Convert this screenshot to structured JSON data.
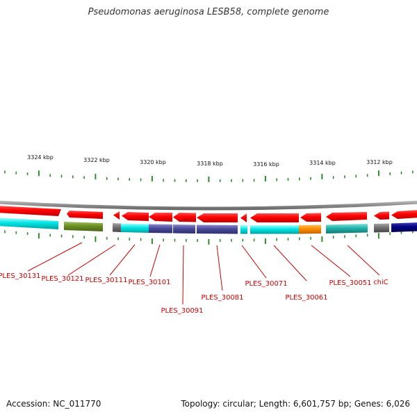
{
  "header": {
    "title": "Pseudomonas aeruginosa LESB58, complete genome"
  },
  "footer": {
    "accession": "Accession: NC_011770",
    "summary": "Topology: circular; Length: 6,601,757 bp; Genes: 6,026"
  },
  "scale": {
    "ticks": [
      "3324 kbp",
      "3322 kbp",
      "3320 kbp",
      "3318 kbp",
      "3316 kbp",
      "3314 kbp",
      "3312 kbp"
    ]
  },
  "gene_labels": [
    "PLES_30131",
    "PLES_30121",
    "PLES_30111",
    "PLES_30101",
    "PLES_30091",
    "PLES_30081",
    "PLES_30071",
    "PLES_30061",
    "PLES_30051",
    "chiC"
  ],
  "colors": {
    "forward_strand": "#ff0000",
    "cog_cyan": "#00e5e5",
    "cog_olive": "#6b8e23",
    "cog_slate": "#4b4b9b",
    "cog_orange": "#ff8c00",
    "cog_teal": "#20b2aa",
    "cog_grey": "#707070",
    "cog_navy": "#000080",
    "backbone": "#8c8c8c",
    "tick": "#2e8b2e",
    "label": "#cc0000"
  }
}
